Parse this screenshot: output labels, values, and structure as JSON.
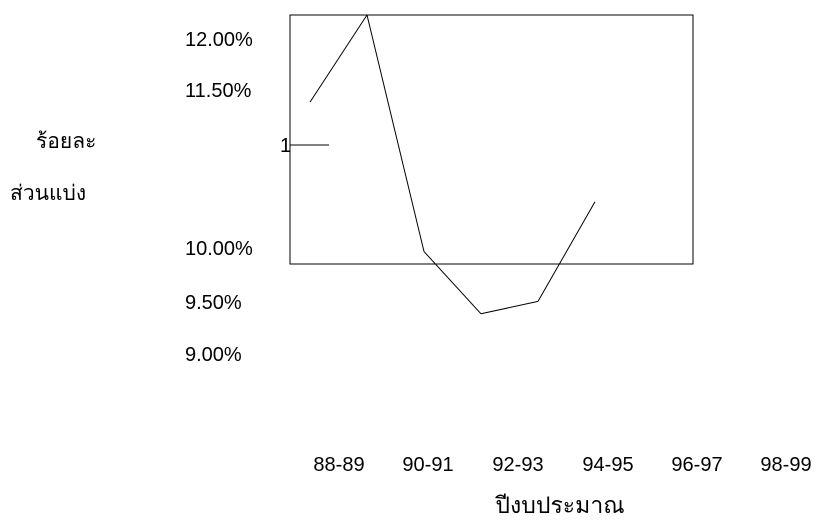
{
  "chart_data": {
    "type": "line",
    "categories": [
      "88-89",
      "90-91",
      "92-93",
      "94-95",
      "96-97",
      "98-99"
    ],
    "ytick_labels": [
      "12.00%",
      "11.50%",
      "10.00%",
      "9.50%",
      "9.00%"
    ],
    "stray_label": "1",
    "ylabel_line1": "ร้อยละ",
    "ylabel_line2": "ส่วนแบ่ง",
    "xlabel": "ปีงบประมาณ",
    "series": [
      {
        "values": [
          11.3,
          12.0,
          10.1,
          9.6,
          9.7,
          10.5
        ]
      }
    ],
    "grid": false,
    "legend": "none"
  }
}
